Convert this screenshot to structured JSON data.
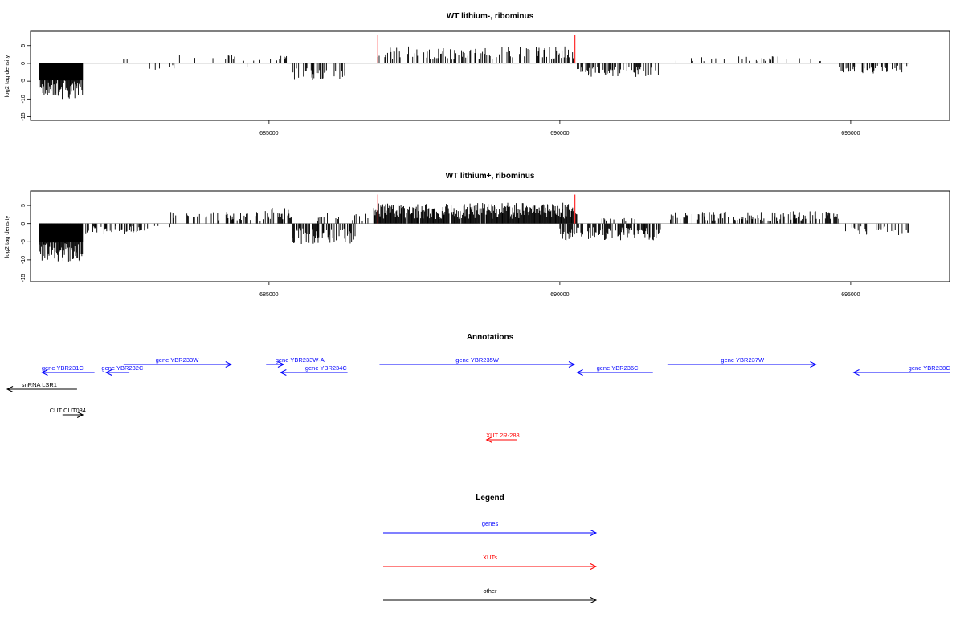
{
  "colors": {
    "genes": "#0000ff",
    "XUTs": "#ff0000",
    "other": "#000000",
    "bars": "#000000",
    "boundary": "#ff0000"
  },
  "chart_data": [
    {
      "type": "bar",
      "title": "WT lithium-, ribominus",
      "ylabel": "log2 tag density",
      "xlim": [
        680900,
        696700
      ],
      "ylim": [
        -16,
        9
      ],
      "yticks": [
        -15,
        -10,
        -5,
        0,
        5
      ],
      "xticks": [
        685000,
        690000,
        695000
      ],
      "marker_positions": [
        686870,
        690260
      ],
      "segments": [
        {
          "x0": 681050,
          "x1": 681800,
          "amp": 9.5,
          "sign": -1,
          "density": 1.0
        },
        {
          "x0": 681950,
          "x1": 682500,
          "amp": 2.0,
          "sign": -1,
          "density": 0.1
        },
        {
          "x0": 682500,
          "x1": 682900,
          "amp": 1.2,
          "sign": 1,
          "density": 0.06
        },
        {
          "x0": 682900,
          "x1": 683400,
          "amp": 2.0,
          "sign": -1,
          "density": 0.1
        },
        {
          "x0": 683400,
          "x1": 684600,
          "amp": 2.2,
          "sign": 1,
          "density": 0.1
        },
        {
          "x0": 684600,
          "x1": 684700,
          "amp": 1.0,
          "sign": -1,
          "density": 0.05
        },
        {
          "x0": 684700,
          "x1": 685000,
          "amp": 1.5,
          "sign": 1,
          "density": 0.08
        },
        {
          "x0": 685000,
          "x1": 685300,
          "amp": 3.0,
          "sign": 1,
          "density": 0.4
        },
        {
          "x0": 685400,
          "x1": 686300,
          "amp": 4.5,
          "sign": -1,
          "density": 0.45
        },
        {
          "x0": 686870,
          "x1": 690260,
          "amp": 4.2,
          "sign": 1,
          "density": 0.42
        },
        {
          "x0": 690300,
          "x1": 691700,
          "amp": 3.5,
          "sign": -1,
          "density": 0.4
        },
        {
          "x0": 691900,
          "x1": 694600,
          "amp": 1.8,
          "sign": 1,
          "density": 0.15
        },
        {
          "x0": 694800,
          "x1": 696000,
          "amp": 2.5,
          "sign": -1,
          "density": 0.3
        }
      ]
    },
    {
      "type": "bar",
      "title": "WT lithium+, ribominus",
      "ylabel": "log2 tag density",
      "xlim": [
        680900,
        696700
      ],
      "ylim": [
        -16,
        9
      ],
      "yticks": [
        -15,
        -10,
        -5,
        0,
        5
      ],
      "xticks": [
        685000,
        690000,
        695000
      ],
      "marker_positions": [
        686870,
        690260
      ],
      "segments": [
        {
          "x0": 681050,
          "x1": 681800,
          "amp": 10.0,
          "sign": -1,
          "density": 1.0
        },
        {
          "x0": 681850,
          "x1": 682900,
          "amp": 2.5,
          "sign": -1,
          "density": 0.35
        },
        {
          "x0": 682900,
          "x1": 683300,
          "amp": 1.5,
          "sign": -1,
          "density": 0.15
        },
        {
          "x0": 683300,
          "x1": 684900,
          "amp": 2.8,
          "sign": 1,
          "density": 0.3
        },
        {
          "x0": 684900,
          "x1": 685400,
          "amp": 3.8,
          "sign": 1,
          "density": 0.6
        },
        {
          "x0": 685400,
          "x1": 686500,
          "amp": 5.0,
          "sign": -1,
          "density": 0.6
        },
        {
          "x0": 685800,
          "x1": 686700,
          "amp": 2.5,
          "sign": 1,
          "density": 0.25
        },
        {
          "x0": 686800,
          "x1": 690300,
          "amp": 5.0,
          "sign": 1,
          "density": 0.95
        },
        {
          "x0": 690000,
          "x1": 691750,
          "amp": 4.0,
          "sign": -1,
          "density": 0.65
        },
        {
          "x0": 690700,
          "x1": 691300,
          "amp": 2.0,
          "sign": 1,
          "density": 0.2
        },
        {
          "x0": 691900,
          "x1": 694800,
          "amp": 3.0,
          "sign": 1,
          "density": 0.45
        },
        {
          "x0": 694900,
          "x1": 696000,
          "amp": 2.8,
          "sign": -1,
          "density": 0.3
        }
      ]
    }
  ],
  "annotations": {
    "title": "Annotations",
    "features": [
      {
        "label": "gene YBR231C",
        "type": "genes",
        "start": 682000,
        "end": 681100,
        "row": 1,
        "label_at": 681450
      },
      {
        "label": "gene YBR232C",
        "type": "genes",
        "start": 682600,
        "end": 682200,
        "row": 1,
        "label_at": 682480
      },
      {
        "label": "gene YBR233W",
        "type": "genes",
        "start": 682500,
        "end": 684350,
        "row": 0,
        "label_at": 683420
      },
      {
        "label": "gene YBR233W-A",
        "type": "genes",
        "start": 684950,
        "end": 685250,
        "row": 0,
        "label_at": 685530
      },
      {
        "label": "gene YBR234C",
        "type": "genes",
        "start": 686350,
        "end": 685200,
        "row": 1,
        "label_at": 685980
      },
      {
        "label": "gene YBR235W",
        "type": "genes",
        "start": 686900,
        "end": 690250,
        "row": 0,
        "label_at": 688580
      },
      {
        "label": "gene YBR236C",
        "type": "genes",
        "start": 691600,
        "end": 690300,
        "row": 1,
        "label_at": 690990
      },
      {
        "label": "gene YBR237W",
        "type": "genes",
        "start": 691850,
        "end": 694400,
        "row": 0,
        "label_at": 693140
      },
      {
        "label": "gene YBR238C",
        "type": "genes",
        "start": 696700,
        "end": 695050,
        "row": 1,
        "label_at": 696350
      },
      {
        "label": "snRNA LSR1",
        "type": "other",
        "start": 681700,
        "end": 680500,
        "row": 2,
        "label_at": 681050
      },
      {
        "label": "CUT CUT034",
        "type": "other",
        "start": 681450,
        "end": 681800,
        "row": 3,
        "label_at": 681540
      },
      {
        "label": "XUT 2R-288",
        "type": "XUTs",
        "start": 689260,
        "end": 688740,
        "row": 4,
        "label_at": 689020
      }
    ]
  },
  "legend": {
    "title": "Legend",
    "items": [
      {
        "label": "genes",
        "color": "#0000ff"
      },
      {
        "label": "XUTs",
        "color": "#ff0000"
      },
      {
        "label": "other",
        "color": "#000000"
      }
    ]
  }
}
